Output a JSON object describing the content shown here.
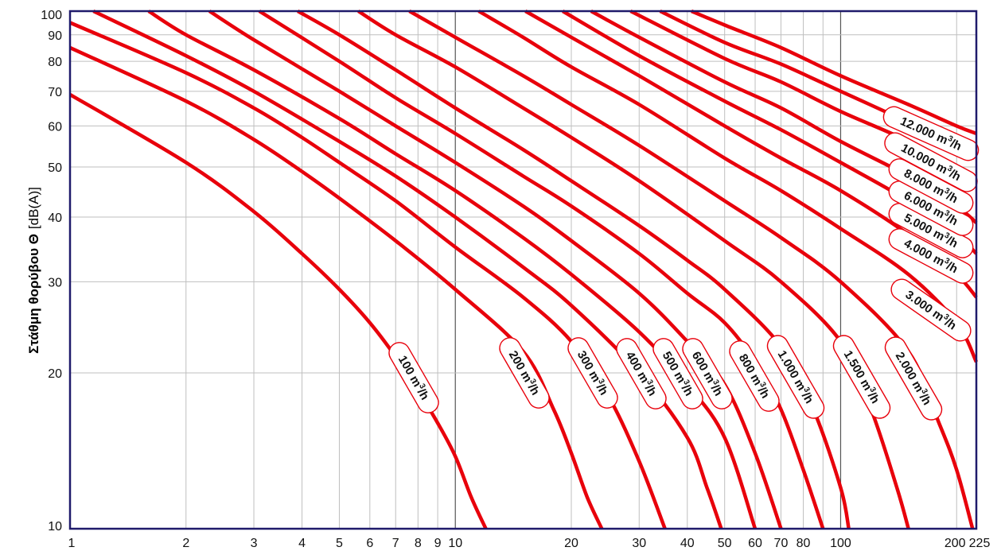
{
  "chart_data": {
    "type": "line",
    "title": "",
    "ylabel_bold": "Στάθμη θορύβου Θ",
    "ylabel_unit": "[dB(A)]",
    "xlabel": "",
    "x_scale": "log",
    "y_scale": "log",
    "xlim": [
      1,
      225
    ],
    "ylim": [
      10,
      100
    ],
    "grid": true,
    "x_ticks": [
      1,
      2,
      3,
      4,
      5,
      6,
      7,
      8,
      9,
      10,
      20,
      30,
      40,
      50,
      60,
      70,
      80,
      100,
      200,
      225
    ],
    "y_ticks": [
      10,
      20,
      30,
      40,
      50,
      60,
      70,
      80,
      90,
      100
    ],
    "colors": {
      "curve": "#e8000b",
      "frame": "#1f1a6b",
      "grid": "#bfbfbf"
    },
    "series": [
      {
        "name": "100 m³/h",
        "label_main": "100 m",
        "label_sup": "3",
        "label_tail": "/h",
        "points": [
          [
            1,
            69
          ],
          [
            2,
            51
          ],
          [
            3,
            41
          ],
          [
            4,
            34
          ],
          [
            5,
            29
          ],
          [
            6,
            25
          ],
          [
            7,
            21.5
          ],
          [
            8,
            18.5
          ],
          [
            9,
            16
          ],
          [
            10,
            13.8
          ],
          [
            11,
            11.5
          ],
          [
            12,
            10
          ]
        ]
      },
      {
        "name": "200 m³/h",
        "label_main": "200 m",
        "label_sup": "3",
        "label_tail": "/h",
        "points": [
          [
            1,
            85
          ],
          [
            2,
            67
          ],
          [
            3,
            56.5
          ],
          [
            4,
            49
          ],
          [
            5,
            43.5
          ],
          [
            7,
            36
          ],
          [
            10,
            29
          ],
          [
            15,
            22
          ],
          [
            18,
            17
          ],
          [
            20,
            14
          ],
          [
            22,
            11.5
          ],
          [
            24,
            10
          ]
        ]
      },
      {
        "name": "300 m³/h",
        "label_main": "300 m",
        "label_sup": "3",
        "label_tail": "/h",
        "points": [
          [
            1,
            95
          ],
          [
            2,
            76
          ],
          [
            3,
            65
          ],
          [
            4,
            57
          ],
          [
            5,
            51
          ],
          [
            7,
            43
          ],
          [
            10,
            35
          ],
          [
            15,
            28
          ],
          [
            20,
            23
          ],
          [
            25,
            18
          ],
          [
            30,
            13.5
          ],
          [
            35,
            10
          ]
        ]
      },
      {
        "name": "400 m³/h",
        "label_main": "400 m",
        "label_sup": "3",
        "label_tail": "/h",
        "points": [
          [
            1.15,
            100
          ],
          [
            2,
            82
          ],
          [
            3,
            70
          ],
          [
            5,
            56
          ],
          [
            7,
            48
          ],
          [
            10,
            40
          ],
          [
            15,
            32
          ],
          [
            20,
            27
          ],
          [
            30,
            20
          ],
          [
            40,
            15
          ],
          [
            45,
            12
          ],
          [
            49,
            10
          ]
        ]
      },
      {
        "name": "500 m³/h",
        "label_main": "500 m",
        "label_sup": "3",
        "label_tail": "/h",
        "points": [
          [
            1.6,
            100
          ],
          [
            2,
            90
          ],
          [
            3,
            77
          ],
          [
            5,
            62
          ],
          [
            7,
            53
          ],
          [
            10,
            45
          ],
          [
            15,
            36.5
          ],
          [
            20,
            31
          ],
          [
            30,
            24
          ],
          [
            40,
            19
          ],
          [
            50,
            15
          ],
          [
            60,
            10
          ]
        ]
      },
      {
        "name": "600 m³/h",
        "label_main": "600 m",
        "label_sup": "3",
        "label_tail": "/h",
        "points": [
          [
            2.3,
            100
          ],
          [
            3,
            88
          ],
          [
            5,
            70
          ],
          [
            7,
            60
          ],
          [
            10,
            51
          ],
          [
            15,
            42
          ],
          [
            20,
            36
          ],
          [
            30,
            28.5
          ],
          [
            40,
            23
          ],
          [
            50,
            19
          ],
          [
            60,
            14
          ],
          [
            70,
            10
          ]
        ]
      },
      {
        "name": "800 m³/h",
        "label_main": "800 m",
        "label_sup": "3",
        "label_tail": "/h",
        "points": [
          [
            3.1,
            100
          ],
          [
            5,
            80
          ],
          [
            7,
            68
          ],
          [
            10,
            58
          ],
          [
            15,
            48
          ],
          [
            20,
            42
          ],
          [
            30,
            34
          ],
          [
            40,
            28.5
          ],
          [
            50,
            25
          ],
          [
            60,
            21
          ],
          [
            70,
            17
          ],
          [
            80,
            13
          ],
          [
            90,
            10
          ]
        ]
      },
      {
        "name": "1.000 m³/h",
        "label_main": "1.000 m",
        "label_sup": "3",
        "label_tail": "/h",
        "points": [
          [
            3.9,
            100
          ],
          [
            5,
            90
          ],
          [
            7,
            77
          ],
          [
            10,
            65
          ],
          [
            15,
            54
          ],
          [
            20,
            47
          ],
          [
            30,
            38.5
          ],
          [
            40,
            33
          ],
          [
            50,
            29
          ],
          [
            70,
            22.5
          ],
          [
            85,
            17
          ],
          [
            100,
            12
          ],
          [
            105,
            10
          ]
        ]
      },
      {
        "name": "1.500 m³/h",
        "label_main": "1.500 m",
        "label_sup": "3",
        "label_tail": "/h",
        "points": [
          [
            5.6,
            100
          ],
          [
            7,
            90
          ],
          [
            10,
            78
          ],
          [
            15,
            65
          ],
          [
            20,
            57
          ],
          [
            30,
            47
          ],
          [
            50,
            36
          ],
          [
            70,
            30
          ],
          [
            100,
            23
          ],
          [
            120,
            17
          ],
          [
            140,
            12
          ],
          [
            150,
            10
          ]
        ]
      },
      {
        "name": "2.000 m³/h",
        "label_main": "2.000 m",
        "label_sup": "3",
        "label_tail": "/h",
        "points": [
          [
            7.6,
            100
          ],
          [
            10,
            89
          ],
          [
            15,
            75
          ],
          [
            20,
            66
          ],
          [
            30,
            55
          ],
          [
            50,
            43
          ],
          [
            70,
            36.5
          ],
          [
            100,
            30
          ],
          [
            150,
            22
          ],
          [
            180,
            16
          ],
          [
            200,
            13
          ],
          [
            220,
            10
          ]
        ]
      },
      {
        "name": "3.000 m³/h",
        "label_main": "3.000 m",
        "label_sup": "3",
        "label_tail": "/h",
        "points": [
          [
            11.5,
            100
          ],
          [
            15,
            89
          ],
          [
            20,
            78
          ],
          [
            30,
            66
          ],
          [
            50,
            52
          ],
          [
            70,
            45
          ],
          [
            100,
            38
          ],
          [
            150,
            31
          ],
          [
            200,
            25
          ],
          [
            225,
            21
          ]
        ]
      },
      {
        "name": "4.000 m³/h",
        "label_main": "4.000 m",
        "label_sup": "3",
        "label_tail": "/h",
        "points": [
          [
            15.2,
            100
          ],
          [
            20,
            89
          ],
          [
            30,
            75
          ],
          [
            50,
            60
          ],
          [
            70,
            52
          ],
          [
            100,
            45
          ],
          [
            150,
            37
          ],
          [
            200,
            31
          ],
          [
            225,
            28
          ]
        ]
      },
      {
        "name": "5.000 m³/h",
        "label_main": "5.000 m",
        "label_sup": "3",
        "label_tail": "/h",
        "points": [
          [
            19,
            100
          ],
          [
            30,
            82
          ],
          [
            50,
            67
          ],
          [
            70,
            59
          ],
          [
            100,
            51
          ],
          [
            150,
            43
          ],
          [
            200,
            37
          ],
          [
            225,
            34
          ]
        ]
      },
      {
        "name": "6.000 m³/h",
        "label_main": "6.000 m",
        "label_sup": "3",
        "label_tail": "/h",
        "points": [
          [
            22.5,
            100
          ],
          [
            30,
            89
          ],
          [
            50,
            73
          ],
          [
            70,
            65
          ],
          [
            100,
            56
          ],
          [
            150,
            48
          ],
          [
            200,
            42
          ],
          [
            225,
            39
          ]
        ]
      },
      {
        "name": "8.000 m³/h",
        "label_main": "8.000 m",
        "label_sup": "3",
        "label_tail": "/h",
        "points": [
          [
            28.5,
            100
          ],
          [
            50,
            81
          ],
          [
            70,
            73
          ],
          [
            100,
            64
          ],
          [
            150,
            56
          ],
          [
            200,
            49
          ],
          [
            225,
            46
          ]
        ]
      },
      {
        "name": "10.000 m³/h",
        "label_main": "10.000 m",
        "label_sup": "3",
        "label_tail": "/h",
        "points": [
          [
            34,
            100
          ],
          [
            50,
            87
          ],
          [
            70,
            79
          ],
          [
            100,
            70
          ],
          [
            150,
            61
          ],
          [
            200,
            55
          ],
          [
            225,
            53
          ]
        ]
      },
      {
        "name": "12.000 m³/h",
        "label_main": "12.000 m",
        "label_sup": "3",
        "label_tail": "/h",
        "points": [
          [
            41,
            100
          ],
          [
            50,
            94
          ],
          [
            70,
            85
          ],
          [
            100,
            75
          ],
          [
            150,
            66
          ],
          [
            200,
            60
          ],
          [
            225,
            58
          ]
        ]
      }
    ]
  }
}
